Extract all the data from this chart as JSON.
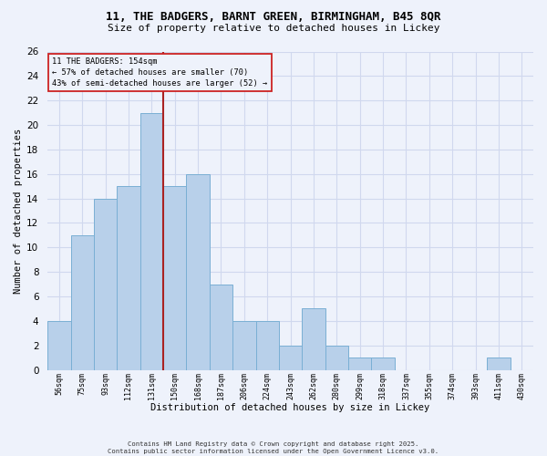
{
  "title_line1": "11, THE BADGERS, BARNT GREEN, BIRMINGHAM, B45 8QR",
  "title_line2": "Size of property relative to detached houses in Lickey",
  "xlabel": "Distribution of detached houses by size in Lickey",
  "ylabel": "Number of detached properties",
  "footer": "Contains HM Land Registry data © Crown copyright and database right 2025.\nContains public sector information licensed under the Open Government Licence v3.0.",
  "annotation_line1": "11 THE BADGERS: 154sqm",
  "annotation_line2": "← 57% of detached houses are smaller (70)",
  "annotation_line3": "43% of semi-detached houses are larger (52) →",
  "bar_labels": [
    "56sqm",
    "75sqm",
    "93sqm",
    "112sqm",
    "131sqm",
    "150sqm",
    "168sqm",
    "187sqm",
    "206sqm",
    "224sqm",
    "243sqm",
    "262sqm",
    "280sqm",
    "299sqm",
    "318sqm",
    "337sqm",
    "355sqm",
    "374sqm",
    "393sqm",
    "411sqm",
    "430sqm"
  ],
  "bar_values": [
    4,
    11,
    14,
    15,
    21,
    15,
    16,
    7,
    4,
    4,
    2,
    5,
    2,
    1,
    1,
    0,
    0,
    0,
    0,
    1,
    0
  ],
  "bar_color": "#b8d0ea",
  "bar_edge_color": "#7aafd4",
  "red_line_index": 4.5,
  "highlight_color": "#aa2222",
  "ylim": [
    0,
    26
  ],
  "yticks": [
    0,
    2,
    4,
    6,
    8,
    10,
    12,
    14,
    16,
    18,
    20,
    22,
    24,
    26
  ],
  "annotation_box_color": "#cc2222",
  "background_color": "#eef2fb",
  "grid_color": "#d0d8ee"
}
